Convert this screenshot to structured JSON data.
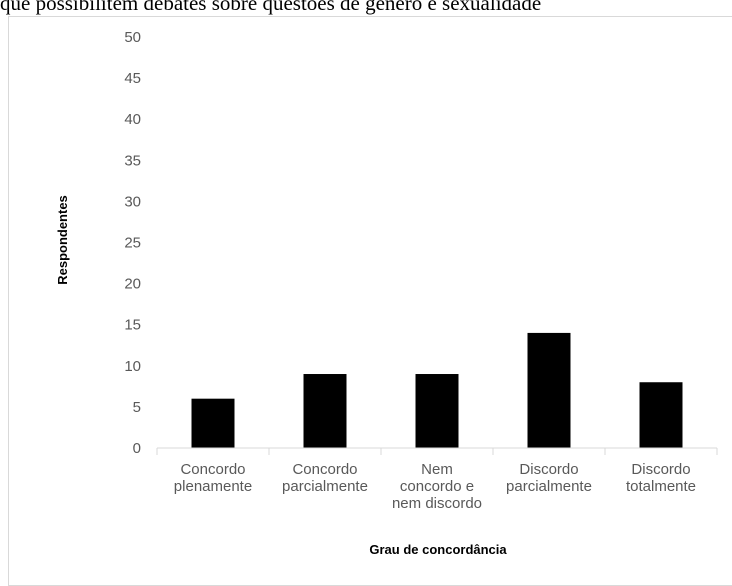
{
  "top_text": "que possibilitem debates sobre questões de gênero e sexualidade",
  "chart_data": {
    "type": "bar",
    "categories": [
      [
        "Concordo",
        "plenamente"
      ],
      [
        "Concordo",
        "parcialmente"
      ],
      [
        "Nem",
        "concordo e",
        "nem discordo"
      ],
      [
        "Discordo",
        "parcialmente"
      ],
      [
        "Discordo",
        "totalmente"
      ]
    ],
    "values": [
      6,
      9,
      9,
      14,
      8
    ],
    "ylim": [
      0,
      50
    ],
    "yticks": [
      0,
      5,
      10,
      15,
      20,
      25,
      30,
      35,
      40,
      45,
      50
    ],
    "xlabel": "Grau de concordância",
    "ylabel": "Respondentes",
    "bar_color": "#000000",
    "grid": false
  }
}
